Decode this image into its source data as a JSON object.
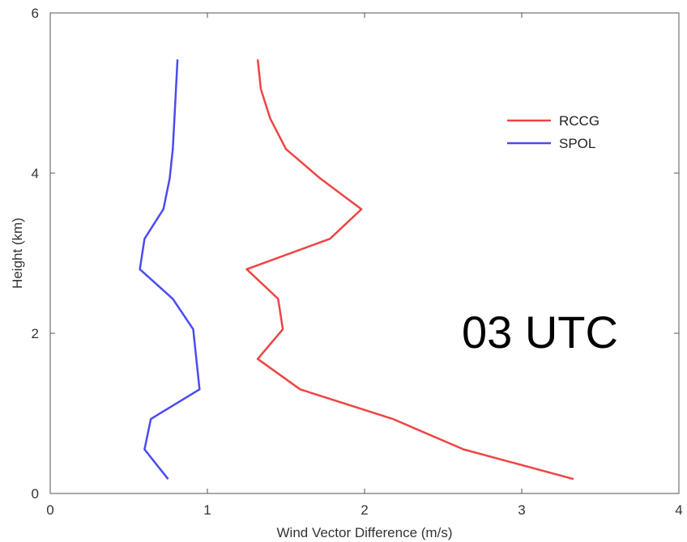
{
  "chart_data": {
    "type": "line",
    "title": "",
    "xlabel": "Wind Vector Difference (m/s)",
    "ylabel": "Height (km)",
    "xlim": [
      0,
      4
    ],
    "ylim": [
      0,
      6
    ],
    "xticks": [
      0,
      1,
      2,
      3,
      4
    ],
    "yticks": [
      0,
      2,
      4,
      6
    ],
    "grid": false,
    "legend_position": "top-right",
    "annotation": "03 UTC",
    "series": [
      {
        "name": "RCCG",
        "color": "#ee4444",
        "points": [
          {
            "x": 3.33,
            "y": 0.18
          },
          {
            "x": 2.63,
            "y": 0.55
          },
          {
            "x": 2.18,
            "y": 0.93
          },
          {
            "x": 1.59,
            "y": 1.3
          },
          {
            "x": 1.32,
            "y": 1.68
          },
          {
            "x": 1.48,
            "y": 2.05
          },
          {
            "x": 1.45,
            "y": 2.43
          },
          {
            "x": 1.25,
            "y": 2.8
          },
          {
            "x": 1.78,
            "y": 3.18
          },
          {
            "x": 1.98,
            "y": 3.55
          },
          {
            "x": 1.72,
            "y": 3.93
          },
          {
            "x": 1.5,
            "y": 4.3
          },
          {
            "x": 1.4,
            "y": 4.68
          },
          {
            "x": 1.34,
            "y": 5.05
          },
          {
            "x": 1.32,
            "y": 5.42
          }
        ]
      },
      {
        "name": "SPOL",
        "color": "#4b4bf0",
        "points": [
          {
            "x": 0.75,
            "y": 0.18
          },
          {
            "x": 0.6,
            "y": 0.55
          },
          {
            "x": 0.64,
            "y": 0.93
          },
          {
            "x": 0.95,
            "y": 1.3
          },
          {
            "x": 0.91,
            "y": 2.05
          },
          {
            "x": 0.78,
            "y": 2.43
          },
          {
            "x": 0.57,
            "y": 2.8
          },
          {
            "x": 0.6,
            "y": 3.18
          },
          {
            "x": 0.72,
            "y": 3.55
          },
          {
            "x": 0.76,
            "y": 3.93
          },
          {
            "x": 0.78,
            "y": 4.3
          },
          {
            "x": 0.79,
            "y": 4.68
          },
          {
            "x": 0.8,
            "y": 5.05
          },
          {
            "x": 0.81,
            "y": 5.42
          }
        ]
      }
    ]
  }
}
